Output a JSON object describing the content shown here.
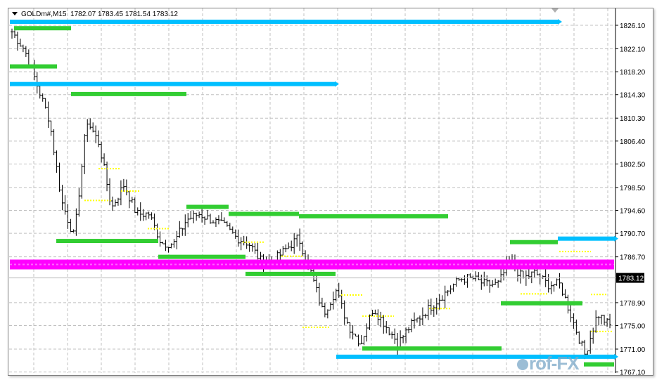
{
  "header": {
    "symbol": "GOLDm#,M15",
    "ohlc": "1782.07 1783.45 1781.54 1783.12"
  },
  "watermark": "Prof-FX",
  "chart_data": {
    "type": "ohlc",
    "title": "GOLDm#,M15",
    "ylim": [
      1766.5,
      1828.5
    ],
    "y_ticks": [
      "1826.10",
      "1822.10",
      "1818.20",
      "1814.30",
      "1810.30",
      "1806.40",
      "1802.50",
      "1798.50",
      "1794.60",
      "1790.70",
      "1786.70",
      "1778.90",
      "1775.00",
      "1771.00",
      "1767.10"
    ],
    "current_price": "1783.12",
    "grid": true,
    "approx_close_path": [
      1825,
      1822,
      1816,
      1810,
      1796,
      1790,
      1810,
      1806,
      1795,
      1799,
      1794,
      1794,
      1789,
      1789,
      1793,
      1794,
      1793,
      1792,
      1790,
      1789,
      1786,
      1786,
      1788,
      1790,
      1784,
      1777,
      1781,
      1775,
      1772,
      1778,
      1775,
      1772,
      1775,
      1777,
      1779,
      1781,
      1783,
      1783,
      1782,
      1782,
      1786,
      1783,
      1784,
      1782,
      1782,
      1776,
      1770,
      1777,
      1775
    ],
    "levels": [
      {
        "kind": "blue-arrows",
        "price": 1826.7
      },
      {
        "kind": "blue-arrows",
        "price": 1816.1
      },
      {
        "kind": "blue-arrows",
        "price": 1789.8
      },
      {
        "kind": "blue-arrows",
        "price": 1769.7
      },
      {
        "kind": "magenta-band",
        "price": 1785.4
      },
      {
        "kind": "green",
        "price": 1825.6
      },
      {
        "kind": "green",
        "price": 1819.1
      },
      {
        "kind": "green",
        "price": 1814.4
      },
      {
        "kind": "green",
        "price": 1795.2
      },
      {
        "kind": "green",
        "price": 1794.0
      },
      {
        "kind": "green",
        "price": 1793.6
      },
      {
        "kind": "green",
        "price": 1789.4
      },
      {
        "kind": "green",
        "price": 1786.7
      },
      {
        "kind": "green",
        "price": 1783.8
      },
      {
        "kind": "green",
        "price": 1789.2
      },
      {
        "kind": "green",
        "price": 1778.8
      },
      {
        "kind": "green",
        "price": 1771.1
      },
      {
        "kind": "green",
        "price": 1768.4
      }
    ],
    "colors": {
      "blue": "#00bfff",
      "green": "#32cd32",
      "magenta": "#ff00ff",
      "yellow": "#ffff00",
      "grid": "#c0c0c0",
      "bars": "#000000"
    }
  }
}
